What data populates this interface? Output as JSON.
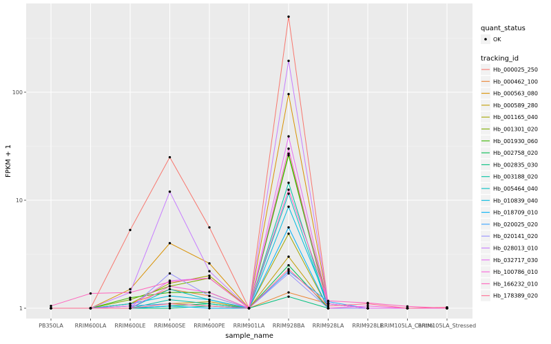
{
  "chart_data": {
    "type": "line",
    "xlabel": "sample_name",
    "ylabel": "FPKM + 1",
    "y_scale": "log10",
    "ylim": [
      0.95,
      600
    ],
    "grid": true,
    "legend_placement": "right",
    "y_ticks": [
      {
        "value": 1,
        "label": "1"
      },
      {
        "value": 10,
        "label": "10"
      },
      {
        "value": 100,
        "label": "100"
      }
    ],
    "categories": [
      "PB350LA",
      "RRIM600LA",
      "RRIM600LE",
      "RRIM600SE",
      "RRIM600PE",
      "RRIM901LA",
      "RRIM928BA",
      "RRIM928LA",
      "RRIM928LE",
      "RRIM105LA_Control",
      "RRIM105LA_Stressed"
    ],
    "point_legend": {
      "title": "quant_status",
      "items": [
        {
          "label": "OK"
        }
      ]
    },
    "line_legend_title": "tracking_id",
    "series": [
      {
        "name": "Hb_000025_250",
        "color": "#F8766D",
        "values": [
          1.0,
          1.0,
          5.3,
          25,
          5.6,
          1.0,
          500,
          1.1,
          1.0,
          1.0,
          1.0
        ]
      },
      {
        "name": "Hb_000462_100",
        "color": "#EA8331",
        "values": [
          1.0,
          1.0,
          1.1,
          1.5,
          1.3,
          1.0,
          1.4,
          1.1,
          1.0,
          1.0,
          1.0
        ]
      },
      {
        "name": "Hb_000563_080",
        "color": "#D89000",
        "values": [
          1.0,
          1.0,
          1.5,
          4.0,
          2.6,
          1.0,
          96,
          1.1,
          1.0,
          1.0,
          1.0
        ]
      },
      {
        "name": "Hb_000589_280",
        "color": "#C09B00",
        "values": [
          1.0,
          1.0,
          1.05,
          1.1,
          1.15,
          1.0,
          3.0,
          1.0,
          1.0,
          1.0,
          1.0
        ]
      },
      {
        "name": "Hb_001165_040",
        "color": "#A3A500",
        "values": [
          1.0,
          1.0,
          1.1,
          1.7,
          2.0,
          1.0,
          4.9,
          1.0,
          1.0,
          1.0,
          1.0
        ]
      },
      {
        "name": "Hb_001301_020",
        "color": "#7CAE00",
        "values": [
          1.0,
          1.0,
          1.2,
          1.6,
          1.9,
          1.0,
          27,
          1.1,
          1.0,
          1.0,
          1.0
        ]
      },
      {
        "name": "Hb_001930_060",
        "color": "#39B600",
        "values": [
          1.0,
          1.0,
          1.25,
          1.4,
          1.4,
          1.0,
          26,
          1.0,
          1.0,
          1.0,
          1.0
        ]
      },
      {
        "name": "Hb_002758_020",
        "color": "#00BB4E",
        "values": [
          1.0,
          1.0,
          1.0,
          1.05,
          1.1,
          1.0,
          2.5,
          1.0,
          1.0,
          1.0,
          1.0
        ]
      },
      {
        "name": "Hb_002835_030",
        "color": "#00BF7D",
        "values": [
          1.0,
          1.0,
          1.0,
          1.0,
          1.05,
          1.0,
          1.28,
          1.0,
          1.0,
          1.0,
          1.0
        ]
      },
      {
        "name": "Hb_003188_020",
        "color": "#00C1A3",
        "values": [
          1.0,
          1.0,
          1.0,
          1.2,
          1.1,
          1.0,
          14.5,
          1.0,
          1.0,
          1.0,
          1.0
        ]
      },
      {
        "name": "Hb_005464_040",
        "color": "#00BFC4",
        "values": [
          1.0,
          1.0,
          1.0,
          1.5,
          1.2,
          1.0,
          11.5,
          1.0,
          1.0,
          1.0,
          1.0
        ]
      },
      {
        "name": "Hb_010839_040",
        "color": "#00BAE0",
        "values": [
          1.0,
          1.0,
          1.1,
          1.3,
          1.2,
          1.0,
          8.7,
          1.1,
          1.0,
          1.0,
          1.0
        ]
      },
      {
        "name": "Hb_018709_010",
        "color": "#00B0F6",
        "values": [
          1.0,
          1.0,
          1.0,
          1.05,
          1.0,
          1.0,
          5.6,
          1.0,
          1.0,
          1.0,
          1.0
        ]
      },
      {
        "name": "Hb_020025_020",
        "color": "#35A2FF",
        "values": [
          1.0,
          1.0,
          1.05,
          1.1,
          1.05,
          1.0,
          2.2,
          1.15,
          1.0,
          1.0,
          1.0
        ]
      },
      {
        "name": "Hb_020141_020",
        "color": "#9590FF",
        "values": [
          1.0,
          1.0,
          1.0,
          2.1,
          1.3,
          1.0,
          2.1,
          1.0,
          1.0,
          1.0,
          1.0
        ]
      },
      {
        "name": "Hb_028013_010",
        "color": "#C77CFF",
        "values": [
          1.0,
          1.0,
          1.4,
          12,
          2.2,
          1.0,
          195,
          1.1,
          1.0,
          1.0,
          1.0
        ]
      },
      {
        "name": "Hb_032717_030",
        "color": "#E76BF3",
        "values": [
          1.0,
          1.0,
          1.05,
          1.8,
          1.9,
          1.0,
          39,
          1.1,
          1.0,
          1.0,
          1.0
        ]
      },
      {
        "name": "Hb_100786_010",
        "color": "#FA62DB",
        "values": [
          1.0,
          1.0,
          1.0,
          1.6,
          1.4,
          1.0,
          30,
          1.0,
          1.05,
          1.0,
          1.0
        ]
      },
      {
        "name": "Hb_166232_010",
        "color": "#FF62BC",
        "values": [
          1.05,
          1.37,
          1.4,
          1.75,
          1.9,
          1.0,
          12.5,
          1.17,
          1.12,
          1.04,
          1.0
        ]
      },
      {
        "name": "Hb_178389_020",
        "color": "#FF6C91",
        "values": [
          1.0,
          1.0,
          1.0,
          1.1,
          1.05,
          1.0,
          2.3,
          1.05,
          1.1,
          1.0,
          1.02
        ]
      }
    ]
  }
}
